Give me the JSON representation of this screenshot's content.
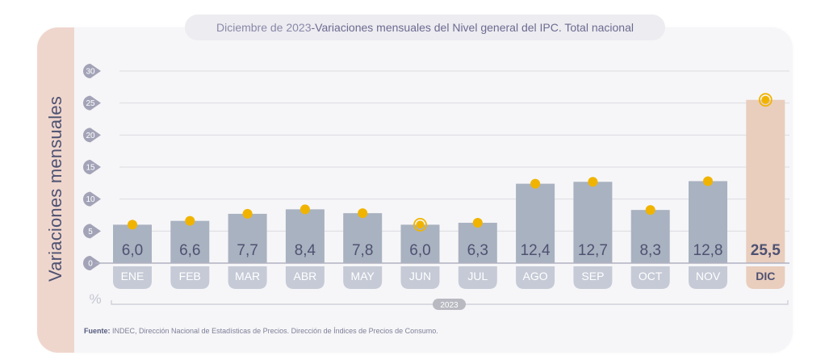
{
  "title": {
    "date": "Diciembre de 2023",
    "separator": " - ",
    "text": "Variaciones mensuales del Nivel general del IPC. Total nacional"
  },
  "y_axis_label": "Variaciones mensuales",
  "unit_label": "%",
  "year_label": "2023",
  "source": {
    "label": "Fuente:",
    "text": "INDEC, Dirección Nacional de Estadísticas de Precios. Dirección de Índices de Precios de Consumo."
  },
  "colors": {
    "bar": "#a9b2c0",
    "bar_highlight": "#e9cdbd",
    "month_pill": "#c5cad6",
    "month_pill_highlight": "#e9cdbd",
    "dot": "#f0b400",
    "tick_badge": "#a3a3b8",
    "gridline": "#dcdce2",
    "value_text": "#4e5272",
    "accent_strip": "#efd6cd"
  },
  "chart_data": {
    "type": "bar",
    "title": "Diciembre de 2023 - Variaciones mensuales del Nivel general del IPC. Total nacional",
    "xlabel": "2023",
    "ylabel": "Variaciones mensuales (%)",
    "categories": [
      "ENE",
      "FEB",
      "MAR",
      "ABR",
      "MAY",
      "JUN",
      "JUL",
      "AGO",
      "SEP",
      "OCT",
      "NOV",
      "DIC"
    ],
    "values": [
      6.0,
      6.6,
      7.7,
      8.4,
      7.8,
      6.0,
      6.3,
      12.4,
      12.7,
      8.3,
      12.8,
      25.5
    ],
    "value_labels": [
      "6,0",
      "6,6",
      "7,7",
      "8,4",
      "7,8",
      "6,0",
      "6,3",
      "12,4",
      "12,7",
      "8,3",
      "12,8",
      "25,5"
    ],
    "highlighted": [
      "DIC"
    ],
    "ringed_markers": [
      "JUN",
      "DIC"
    ],
    "ylim": [
      0,
      30
    ],
    "yticks": [
      0,
      5,
      10,
      15,
      20,
      25,
      30
    ],
    "grid": true,
    "legend": "none"
  }
}
